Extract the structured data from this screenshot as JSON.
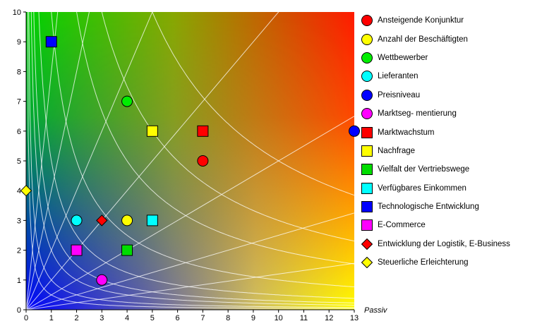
{
  "chart_data": {
    "type": "scatter",
    "title": "",
    "xlabel": "Passiv",
    "ylabel": "",
    "xlim": [
      0,
      13
    ],
    "ylim": [
      0,
      10
    ],
    "x_ticks": [
      0,
      1,
      2,
      3,
      4,
      5,
      6,
      7,
      8,
      9,
      10,
      11,
      12,
      13
    ],
    "y_ticks": [
      0,
      1,
      2,
      3,
      4,
      5,
      6,
      7,
      8,
      9,
      10
    ],
    "grid": false,
    "background": "gradient green (top-left) / red (top-right) / blue (bottom-left) / yellow (bottom-right) with white reference curves",
    "legend_position": "right",
    "series": [
      {
        "name": "Ansteigende Konjunktur",
        "marker": "circle",
        "color": "#ff0000",
        "points": [
          [
            7,
            5
          ]
        ]
      },
      {
        "name": "Anzahl der Beschäftigten",
        "marker": "circle",
        "color": "#ffff00",
        "points": [
          [
            4,
            3
          ]
        ]
      },
      {
        "name": "Wettbewerber",
        "marker": "circle",
        "color": "#00ee00",
        "points": [
          [
            4,
            7
          ]
        ]
      },
      {
        "name": "Lieferanten",
        "marker": "circle",
        "color": "#00ffff",
        "points": [
          [
            2,
            3
          ]
        ]
      },
      {
        "name": "Preisniveau",
        "marker": "circle",
        "color": "#0000ff",
        "points": [
          [
            13,
            6
          ]
        ]
      },
      {
        "name": "Marktseg- mentierung",
        "marker": "circle",
        "color": "#ff00ff",
        "points": [
          [
            3,
            1
          ]
        ]
      },
      {
        "name": "Marktwachstum",
        "marker": "square",
        "color": "#ff0000",
        "points": [
          [
            7,
            6
          ]
        ]
      },
      {
        "name": "Nachfrage",
        "marker": "square",
        "color": "#ffff00",
        "points": [
          [
            5,
            6
          ]
        ]
      },
      {
        "name": "Vielfalt der Vertriebswege",
        "marker": "square",
        "color": "#00dd00",
        "points": [
          [
            4,
            2
          ]
        ]
      },
      {
        "name": "Verfügbares Einkommen",
        "marker": "square",
        "color": "#00ffff",
        "points": [
          [
            5,
            3
          ]
        ]
      },
      {
        "name": "Technologische Entwicklung",
        "marker": "square",
        "color": "#0000ff",
        "points": [
          [
            1,
            9
          ]
        ]
      },
      {
        "name": "E-Commerce",
        "marker": "square",
        "color": "#ff00ff",
        "points": [
          [
            2,
            2
          ]
        ]
      },
      {
        "name": "Entwicklung der Logistik, E-Business",
        "marker": "diamond",
        "color": "#ff0000",
        "points": [
          [
            3,
            3
          ]
        ]
      },
      {
        "name": "Steuerliche Erleichterung",
        "marker": "diamond",
        "color": "#ffff00",
        "points": [
          [
            0,
            4
          ]
        ]
      }
    ]
  }
}
